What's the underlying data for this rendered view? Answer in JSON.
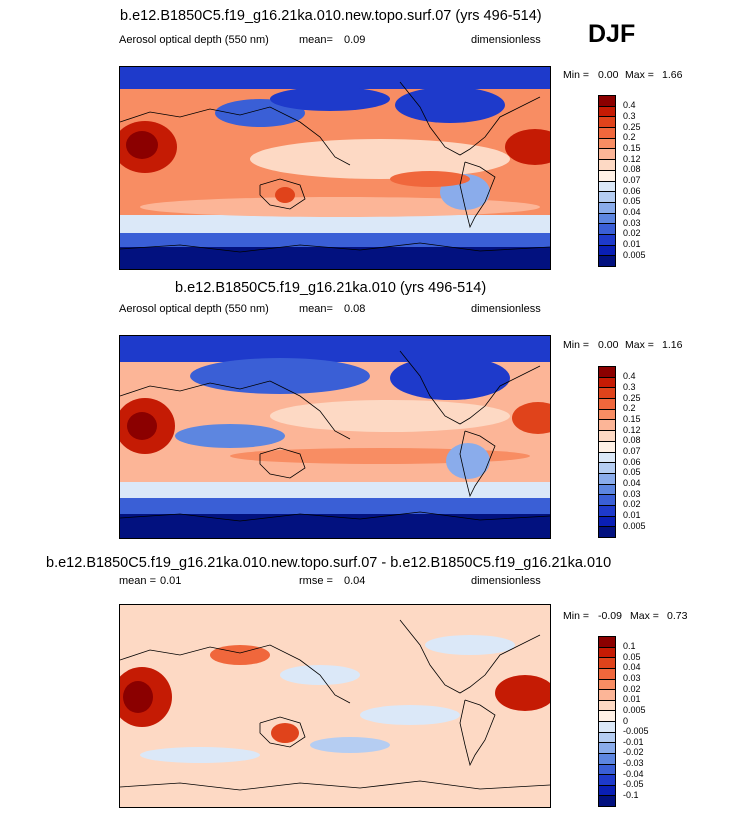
{
  "season": "DJF",
  "panels": [
    {
      "title": "b.e12.B1850C5.f19_g16.21ka.010.new.topo.surf.07 (yrs 496-514)",
      "variable": "Aerosol optical depth (550 nm)",
      "stat_label": "mean=",
      "stat_value": "0.09",
      "extra_label": "",
      "extra_value": "",
      "units": "dimensionless",
      "min_label": "Min =",
      "min_value": "0.00",
      "max_label": "Max =",
      "max_value": "1.66",
      "map_alt": "Global map of aerosol optical depth",
      "colorbar": {
        "levels": [
          "0.4",
          "0.3",
          "0.25",
          "0.2",
          "0.15",
          "0.12",
          "0.08",
          "0.07",
          "0.06",
          "0.05",
          "0.04",
          "0.03",
          "0.02",
          "0.01",
          "0.005"
        ],
        "colors": [
          "#8b0000",
          "#c51b04",
          "#e0431b",
          "#f0673c",
          "#f88d63",
          "#fcb597",
          "#fdd9c4",
          "#fff1e6",
          "#dbe8f8",
          "#b5cdf2",
          "#8aaceb",
          "#5d86e0",
          "#3a5fd6",
          "#1e3acb",
          "#0a1fb5",
          "#02117f"
        ]
      }
    },
    {
      "title": "b.e12.B1850C5.f19_g16.21ka.010 (yrs 496-514)",
      "variable": "Aerosol optical depth (550 nm)",
      "stat_label": "mean=",
      "stat_value": "0.08",
      "extra_label": "",
      "extra_value": "",
      "units": "dimensionless",
      "min_label": "Min =",
      "min_value": "0.00",
      "max_label": "Max =",
      "max_value": "1.16",
      "map_alt": "Global map of aerosol optical depth",
      "colorbar": {
        "levels": [
          "0.4",
          "0.3",
          "0.25",
          "0.2",
          "0.15",
          "0.12",
          "0.08",
          "0.07",
          "0.06",
          "0.05",
          "0.04",
          "0.03",
          "0.02",
          "0.01",
          "0.005"
        ],
        "colors": [
          "#8b0000",
          "#c51b04",
          "#e0431b",
          "#f0673c",
          "#f88d63",
          "#fcb597",
          "#fdd9c4",
          "#fff1e6",
          "#dbe8f8",
          "#b5cdf2",
          "#8aaceb",
          "#5d86e0",
          "#3a5fd6",
          "#1e3acb",
          "#0a1fb5",
          "#02117f"
        ]
      }
    },
    {
      "title": "b.e12.B1850C5.f19_g16.21ka.010.new.topo.surf.07 - b.e12.B1850C5.f19_g16.21ka.010",
      "variable": "",
      "stat_label": "mean =",
      "stat_value": "0.01",
      "extra_label": "rmse =",
      "extra_value": "0.04",
      "units": "dimensionless",
      "min_label": "Min =",
      "min_value": "-0.09",
      "max_label": "Max =",
      "max_value": "0.73",
      "map_alt": "Global map of aerosol optical depth difference",
      "colorbar": {
        "levels": [
          "0.1",
          "0.05",
          "0.04",
          "0.03",
          "0.02",
          "0.01",
          "0.005",
          "0",
          "-0.005",
          "-0.01",
          "-0.02",
          "-0.03",
          "-0.04",
          "-0.05",
          "-0.1"
        ],
        "colors": [
          "#8b0000",
          "#c51b04",
          "#e0431b",
          "#f0673c",
          "#f88d63",
          "#fcb597",
          "#fdd9c4",
          "#fff1e6",
          "#dbe8f8",
          "#b5cdf2",
          "#8aaceb",
          "#5d86e0",
          "#3a5fd6",
          "#1e3acb",
          "#0a1fb5",
          "#02117f"
        ]
      }
    }
  ],
  "chart_data": [
    {
      "type": "heatmap",
      "title": "b.e12.B1850C5.f19_g16.21ka.010.new.topo.surf.07 (yrs 496-514)",
      "variable": "Aerosol optical depth (550 nm)",
      "units": "dimensionless",
      "season": "DJF",
      "mean": 0.09,
      "min": 0.0,
      "max": 1.66,
      "contour_levels": [
        0.005,
        0.01,
        0.02,
        0.03,
        0.04,
        0.05,
        0.06,
        0.07,
        0.08,
        0.12,
        0.15,
        0.2,
        0.25,
        0.3,
        0.4
      ],
      "x_range": [
        0,
        360
      ],
      "y_range": [
        -90,
        90
      ]
    },
    {
      "type": "heatmap",
      "title": "b.e12.B1850C5.f19_g16.21ka.010 (yrs 496-514)",
      "variable": "Aerosol optical depth (550 nm)",
      "units": "dimensionless",
      "season": "DJF",
      "mean": 0.08,
      "min": 0.0,
      "max": 1.16,
      "contour_levels": [
        0.005,
        0.01,
        0.02,
        0.03,
        0.04,
        0.05,
        0.06,
        0.07,
        0.08,
        0.12,
        0.15,
        0.2,
        0.25,
        0.3,
        0.4
      ],
      "x_range": [
        0,
        360
      ],
      "y_range": [
        -90,
        90
      ]
    },
    {
      "type": "heatmap",
      "title": "b.e12.B1850C5.f19_g16.21ka.010.new.topo.surf.07 - b.e12.B1850C5.f19_g16.21ka.010",
      "units": "dimensionless",
      "season": "DJF",
      "mean": 0.01,
      "rmse": 0.04,
      "min": -0.09,
      "max": 0.73,
      "contour_levels": [
        -0.1,
        -0.05,
        -0.04,
        -0.03,
        -0.02,
        -0.01,
        -0.005,
        0,
        0.005,
        0.01,
        0.02,
        0.03,
        0.04,
        0.05,
        0.1
      ],
      "x_range": [
        0,
        360
      ],
      "y_range": [
        -90,
        90
      ]
    }
  ]
}
